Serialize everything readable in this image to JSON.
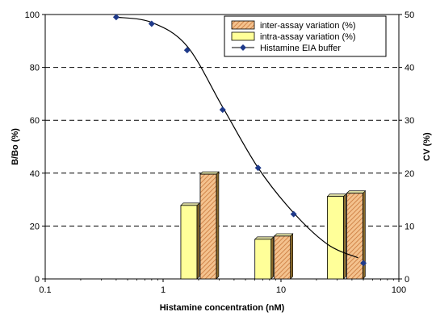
{
  "chart_data": {
    "type": "bar",
    "xlabel": "Histamine concentration (nM)",
    "ylabel": "B/Bo (%)",
    "y2label": "CV (%)",
    "x_scale": "log",
    "xlim": [
      0.1,
      100
    ],
    "ylim": [
      0,
      100
    ],
    "y2lim": [
      0,
      50
    ],
    "x_ticks": [
      "0.1",
      "1",
      "10",
      "100"
    ],
    "y_ticks": [
      "0",
      "20",
      "40",
      "60",
      "80",
      "100"
    ],
    "y2_ticks": [
      "0",
      "10",
      "20",
      "30",
      "40",
      "50"
    ],
    "grid": "horizontal dashed",
    "legend": {
      "placement": "top-right",
      "entries": [
        "inter-assay variation (%)",
        "intra-assay variation (%)",
        "Histamine EIA buffer"
      ]
    },
    "bar_groups": [
      {
        "x": 2,
        "inter": 19.8,
        "intra": 13.9
      },
      {
        "x": 8.5,
        "inter": 8.1,
        "intra": 7.5
      },
      {
        "x": 35,
        "inter": 16.2,
        "intra": 15.6
      }
    ],
    "line_points": {
      "x": [
        0.4,
        0.8,
        1.6,
        3.2,
        6.4,
        12.8,
        50
      ],
      "y": [
        99,
        96.5,
        86.5,
        64,
        42,
        24.5,
        6
      ]
    },
    "curve": {
      "x": [
        0.4,
        0.8,
        1.6,
        3.2,
        6.4,
        12.8,
        25,
        45
      ],
      "y": [
        99,
        97,
        88,
        65,
        42,
        25,
        13,
        8
      ]
    },
    "colors": {
      "inter": "#f4c28e",
      "inter_hatch": "#c8763a",
      "intra": "#ffff99",
      "line": "#000000",
      "marker": "#1f3a8a"
    }
  }
}
